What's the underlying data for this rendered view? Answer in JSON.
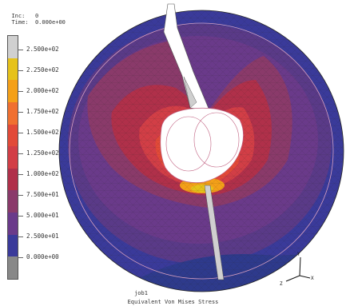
{
  "header": {
    "inc_label": "Inc:",
    "inc_value": "0",
    "time_label": "Time:",
    "time_value": "0.000e+00"
  },
  "legend": {
    "labels": [
      "2.500e+02",
      "2.250e+02",
      "2.000e+02",
      "1.750e+02",
      "1.500e+02",
      "1.250e+02",
      "1.000e+02",
      "7.500e+01",
      "5.000e+01",
      "2.500e+01",
      "0.000e+00"
    ],
    "colors": [
      "#d0d0d0",
      "#e6c21a",
      "#f4a018",
      "#f07030",
      "#e24a38",
      "#d23e46",
      "#b0304a",
      "#8a3a6a",
      "#6a3a8a",
      "#3a3a9a",
      "#888888"
    ]
  },
  "job_name": "job1",
  "footer": "Equivalent Von Mises Stress",
  "axes": {
    "x": "X",
    "y": "Y",
    "z": "Z"
  }
}
